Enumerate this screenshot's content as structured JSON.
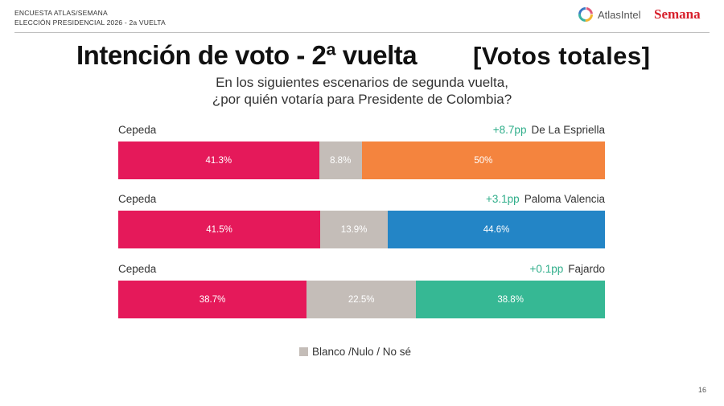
{
  "header": {
    "line1": "ENCUESTA ATLAS/SEMANA",
    "line2": "ELECCIÓN PRESIDENCIAL 2026 - 2a VUELTA",
    "logo_atlas": "AtlasIntel",
    "logo_semana": "Semana"
  },
  "title": "Intención de voto - 2ª vuelta",
  "title_tag": "[Votos totales]",
  "subtitle_line1": "En los siguientes escenarios de segunda vuelta,",
  "subtitle_line2": "¿por quién votaría para Presidente de Colombia?",
  "legend_label": "Blanco /Nulo / No sé",
  "page_number": "16",
  "colors": {
    "cepeda": "#e5195a",
    "blank": "#c4bdb8",
    "de_la_espriella": "#f4843e",
    "paloma_valencia": "#2385c6",
    "fajardo": "#36b894",
    "diff": "#2fae8a"
  },
  "chart_data": {
    "type": "bar",
    "orientation": "horizontal-stacked",
    "categories": [
      "Blanco /Nulo / No sé"
    ],
    "scenarios": [
      {
        "left": "Cepeda",
        "right": "De La Espriella",
        "diff": "+8.7pp",
        "values": [
          41.3,
          8.8,
          50
        ],
        "labels": [
          "41.3%",
          "8.8%",
          "50%"
        ],
        "colors": [
          "#e5195a",
          "#c4bdb8",
          "#f4843e"
        ]
      },
      {
        "left": "Cepeda",
        "right": "Paloma Valencia",
        "diff": "+3.1pp",
        "values": [
          41.5,
          13.9,
          44.6
        ],
        "labels": [
          "41.5%",
          "13.9%",
          "44.6%"
        ],
        "colors": [
          "#e5195a",
          "#c4bdb8",
          "#2385c6"
        ]
      },
      {
        "left": "Cepeda",
        "right": "Fajardo",
        "diff": "+0.1pp",
        "values": [
          38.7,
          22.5,
          38.8
        ],
        "labels": [
          "38.7%",
          "22.5%",
          "38.8%"
        ],
        "colors": [
          "#e5195a",
          "#c4bdb8",
          "#36b894"
        ]
      }
    ]
  }
}
